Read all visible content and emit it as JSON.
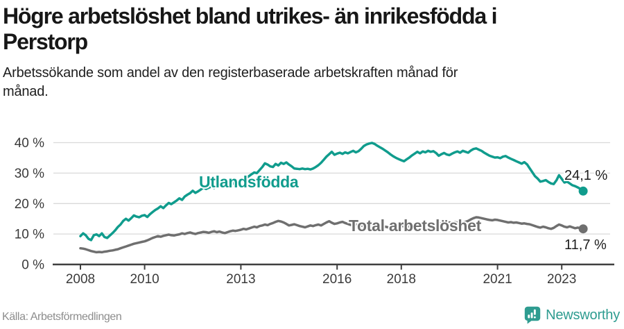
{
  "header": {
    "title_line1": "Högre arbetslöshet bland utrikes- än inrikesfödda i",
    "title_line2": "Perstorp",
    "subtitle_line1": "Arbetssökande som andel av den registerbaserade arbetskraften månad för",
    "subtitle_line2": "månad."
  },
  "footer": {
    "source": "Källa: Arbetsförmedlingen",
    "brand": "Newsworthy"
  },
  "colors": {
    "accent_teal": "#109c8d",
    "line_gray": "#6f6f6f",
    "gridline": "#d9d9d9",
    "axis": "#3f3f3f",
    "tick_text": "#3a3a3a",
    "value_text": "#1d1d1d",
    "logo_teal": "#2e9c90"
  },
  "chart_data": {
    "type": "line",
    "title": "Högre arbetslöshet bland utrikes- än inrikesfödda i Perstorp",
    "subtitle": "Arbetssökande som andel av den registerbaserade arbetskraften månad för månad.",
    "xlabel": "",
    "ylabel": "",
    "x_start_year": 2008,
    "points_per_year": 12,
    "x_end": "2023-09",
    "x_ticks": [
      2008,
      2010,
      2013,
      2016,
      2018,
      2021,
      2023
    ],
    "y_ticks": [
      0,
      10,
      20,
      30,
      40
    ],
    "y_tick_suffix": " %",
    "ylim": [
      0,
      42
    ],
    "grid": "horizontal",
    "legend_position": "inline-labels",
    "series": [
      {
        "name": "Utlandsfödda",
        "color": "#109c8d",
        "end_label": "24,1 %",
        "end_value": 24.1,
        "values": [
          9.3,
          10.2,
          9.6,
          8.4,
          8.0,
          9.6,
          9.9,
          9.3,
          10.2,
          9.0,
          8.7,
          9.5,
          10.3,
          11.2,
          12.3,
          13.1,
          14.3,
          15.0,
          14.4,
          15.2,
          16.1,
          15.7,
          15.5,
          16.0,
          16.2,
          15.6,
          16.5,
          17.2,
          17.9,
          18.4,
          19.1,
          18.5,
          19.4,
          20.2,
          19.8,
          20.4,
          21.0,
          21.7,
          21.2,
          22.3,
          22.9,
          23.4,
          24.2,
          23.5,
          24.0,
          24.6,
          25.3,
          24.8,
          25.2,
          25.6,
          25.1,
          25.8,
          26.2,
          26.0,
          26.5,
          26.3,
          26.8,
          26.5,
          27.0,
          27.2,
          27.5,
          28.0,
          28.4,
          29.0,
          29.6,
          30.2,
          30.0,
          31.0,
          32.0,
          33.2,
          32.8,
          32.2,
          32.0,
          33.0,
          32.5,
          33.4,
          33.0,
          33.5,
          32.8,
          32.2,
          31.5,
          31.4,
          31.3,
          31.5,
          31.3,
          31.4,
          31.2,
          31.5,
          32.0,
          32.6,
          33.4,
          34.4,
          35.4,
          36.2,
          37.0,
          36.0,
          36.4,
          36.7,
          36.3,
          36.8,
          36.5,
          36.9,
          37.3,
          36.8,
          37.2,
          38.0,
          38.9,
          39.4,
          39.7,
          39.9,
          39.6,
          39.0,
          38.5,
          38.0,
          37.4,
          36.8,
          36.1,
          35.5,
          35.0,
          34.6,
          34.2,
          33.9,
          34.5,
          35.1,
          35.8,
          36.4,
          37.0,
          36.5,
          37.1,
          36.8,
          37.3,
          37.0,
          37.2,
          36.6,
          35.7,
          36.2,
          36.6,
          36.1,
          35.9,
          36.4,
          36.8,
          37.1,
          36.7,
          37.3,
          37.0,
          36.7,
          37.4,
          37.9,
          38.1,
          37.7,
          37.3,
          36.7,
          36.2,
          35.7,
          35.4,
          35.1,
          35.2,
          34.9,
          35.4,
          35.6,
          35.1,
          34.7,
          34.3,
          33.9,
          33.5,
          33.1,
          33.6,
          32.9,
          31.6,
          30.3,
          29.0,
          28.2,
          27.2,
          27.4,
          27.7,
          27.1,
          26.6,
          26.4,
          27.6,
          29.3,
          28.1,
          26.9,
          27.2,
          26.6,
          26.0,
          25.7,
          25.3,
          24.8,
          24.1
        ]
      },
      {
        "name": "Total arbetslöshet",
        "color": "#6f6f6f",
        "end_label": "11,7 %",
        "end_value": 11.7,
        "values": [
          5.3,
          5.2,
          5.0,
          4.7,
          4.4,
          4.2,
          4.0,
          4.1,
          4.0,
          4.2,
          4.3,
          4.5,
          4.6,
          4.8,
          5.0,
          5.3,
          5.6,
          5.9,
          6.2,
          6.5,
          6.8,
          7.0,
          7.2,
          7.4,
          7.6,
          7.9,
          8.3,
          8.7,
          9.0,
          9.3,
          9.1,
          9.4,
          9.6,
          9.8,
          9.6,
          9.5,
          9.7,
          9.9,
          10.2,
          10.0,
          10.3,
          10.5,
          10.2,
          10.0,
          10.3,
          10.5,
          10.7,
          10.6,
          10.4,
          10.7,
          10.9,
          10.6,
          10.8,
          10.5,
          10.3,
          10.6,
          10.9,
          11.1,
          11.0,
          11.2,
          11.4,
          11.7,
          11.5,
          11.8,
          12.1,
          12.4,
          12.2,
          12.6,
          12.8,
          13.1,
          12.9,
          13.3,
          13.6,
          14.0,
          14.3,
          14.1,
          13.8,
          13.3,
          12.8,
          13.0,
          13.2,
          12.9,
          12.6,
          12.4,
          12.2,
          12.5,
          12.8,
          12.6,
          12.9,
          13.1,
          12.8,
          13.3,
          13.8,
          14.2,
          13.7,
          13.3,
          13.5,
          13.8,
          14.0,
          13.6,
          13.3,
          13.0,
          12.8,
          13.1,
          12.9,
          12.7,
          12.9,
          12.8,
          12.6,
          12.4,
          12.7,
          12.5,
          12.3,
          12.1,
          12.4,
          12.2,
          12.5,
          12.3,
          12.6,
          12.4,
          12.7,
          12.5,
          12.3,
          12.6,
          12.8,
          12.6,
          12.9,
          13.1,
          12.9,
          13.2,
          13.0,
          13.3,
          13.5,
          13.3,
          13.6,
          13.4,
          13.7,
          13.5,
          13.8,
          13.6,
          13.9,
          13.7,
          14.0,
          13.8,
          14.0,
          14.3,
          14.8,
          15.2,
          15.5,
          15.4,
          15.2,
          15.0,
          14.8,
          14.6,
          14.5,
          14.7,
          14.6,
          14.4,
          14.2,
          14.0,
          13.8,
          13.9,
          13.7,
          13.8,
          13.6,
          13.4,
          13.5,
          13.3,
          13.2,
          12.9,
          12.6,
          12.3,
          12.1,
          12.4,
          12.2,
          11.9,
          11.7,
          12.0,
          12.6,
          13.1,
          12.8,
          12.4,
          12.2,
          12.5,
          12.2,
          11.9,
          12.1,
          11.9,
          11.7
        ]
      }
    ]
  }
}
